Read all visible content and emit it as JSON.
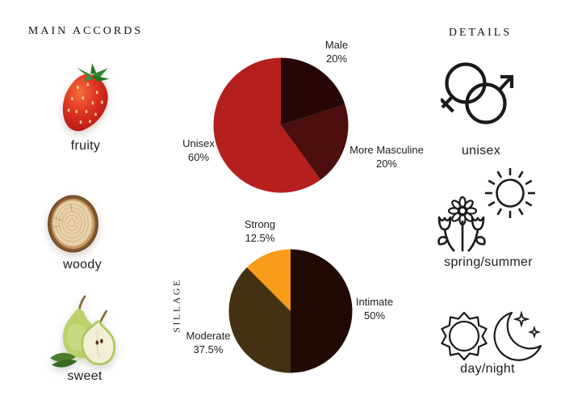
{
  "left_panel": {
    "title": "MAIN ACCORDS",
    "accords": [
      {
        "name": "fruity",
        "icon": "strawberry-image"
      },
      {
        "name": "woody",
        "icon": "wood-slice-image"
      },
      {
        "name": "sweet",
        "icon": "pear-image"
      }
    ]
  },
  "right_panel": {
    "title": "DETAILS",
    "details": [
      {
        "label": "unisex",
        "icon": "gender-unisex-icon"
      },
      {
        "label": "spring/summer",
        "icon": "flowers-and-sun-icon"
      },
      {
        "label": "day/night",
        "icon": "sun-and-moon-icon"
      }
    ]
  },
  "chart_data": [
    {
      "type": "pie",
      "name": "gender-audience",
      "start_angle_deg": 0,
      "direction": "clockwise",
      "labels_position": "outside",
      "slices": [
        {
          "label": "Male",
          "value": 20,
          "pct_text": "20%",
          "color": "#260607"
        },
        {
          "label": "More Masculine",
          "value": 20,
          "pct_text": "20%",
          "color": "#4d0e0e"
        },
        {
          "label": "Unisex",
          "value": 60,
          "pct_text": "60%",
          "color": "#b5201f"
        }
      ]
    },
    {
      "type": "pie",
      "name": "sillage",
      "axis_label": "SILLAGE",
      "start_angle_deg": 0,
      "direction": "clockwise",
      "labels_position": "outside",
      "slices": [
        {
          "label": "Intimate",
          "value": 50,
          "pct_text": "50%",
          "color": "#210a04"
        },
        {
          "label": "Moderate",
          "value": 37.5,
          "pct_text": "37.5%",
          "color": "#443113"
        },
        {
          "label": "Strong",
          "value": 12.5,
          "pct_text": "12.5%",
          "color": "#f79b18"
        }
      ]
    }
  ],
  "colors": {
    "background": "#ffffff",
    "text": "#1d1d1d",
    "icon_stroke": "#1a1a1a"
  }
}
